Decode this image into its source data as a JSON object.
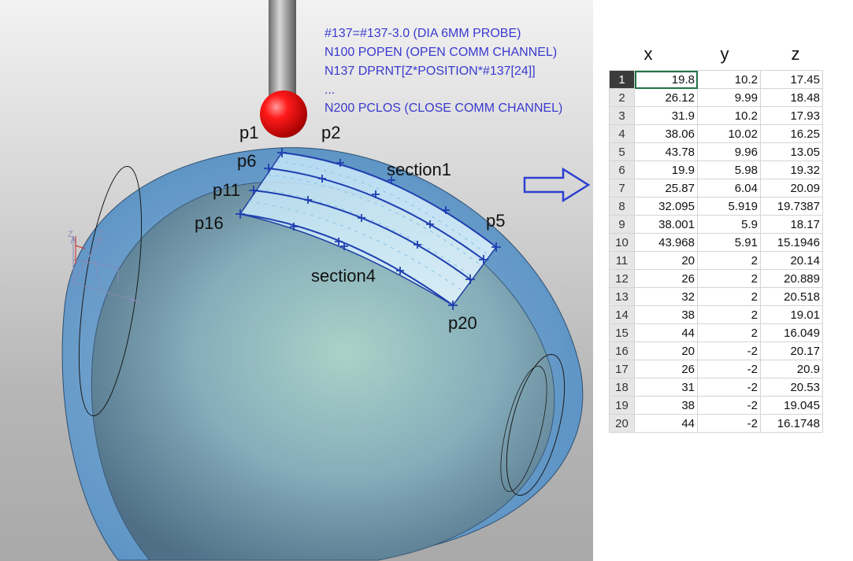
{
  "code": [
    "#137=#137-3.0 (DIA 6MM PROBE)",
    "N100 POPEN (OPEN COMM CHANNEL)",
    "N137 DPRNT[Z*POSITION*#137[24]]",
    "...",
    "N200 PCLOS (CLOSE COMM CHANNEL)"
  ],
  "labels": {
    "p1": "p1",
    "p2": "p2",
    "p5": "p5",
    "p6": "p6",
    "p11": "p11",
    "p16": "p16",
    "p20": "p20",
    "section1": "section1",
    "section4": "section4"
  },
  "axis": {
    "z": "Z",
    "y": "Y",
    "x": "X"
  },
  "table": {
    "headers": [
      "x",
      "y",
      "z"
    ],
    "rows": [
      {
        "n": "1",
        "x": "19.8",
        "y": "10.2",
        "z": "17.45"
      },
      {
        "n": "2",
        "x": "26.12",
        "y": "9.99",
        "z": "18.48"
      },
      {
        "n": "3",
        "x": "31.9",
        "y": "10.2",
        "z": "17.93"
      },
      {
        "n": "4",
        "x": "38.06",
        "y": "10.02",
        "z": "16.25"
      },
      {
        "n": "5",
        "x": "43.78",
        "y": "9.96",
        "z": "13.05"
      },
      {
        "n": "6",
        "x": "19.9",
        "y": "5.98",
        "z": "19.32"
      },
      {
        "n": "7",
        "x": "25.87",
        "y": "6.04",
        "z": "20.09"
      },
      {
        "n": "8",
        "x": "32.095",
        "y": "5.919",
        "z": "19.7387"
      },
      {
        "n": "9",
        "x": "38.001",
        "y": "5.9",
        "z": "18.17"
      },
      {
        "n": "10",
        "x": "43.968",
        "y": "5.91",
        "z": "15.1946"
      },
      {
        "n": "11",
        "x": "20",
        "y": "2",
        "z": "20.14"
      },
      {
        "n": "12",
        "x": "26",
        "y": "2",
        "z": "20.889"
      },
      {
        "n": "13",
        "x": "32",
        "y": "2",
        "z": "20.518"
      },
      {
        "n": "14",
        "x": "38",
        "y": "2",
        "z": "19.01"
      },
      {
        "n": "15",
        "x": "44",
        "y": "2",
        "z": "16.049"
      },
      {
        "n": "16",
        "x": "20",
        "y": "-2",
        "z": "20.17"
      },
      {
        "n": "17",
        "x": "26",
        "y": "-2",
        "z": "20.9"
      },
      {
        "n": "18",
        "x": "31",
        "y": "-2",
        "z": "20.53"
      },
      {
        "n": "19",
        "x": "38",
        "y": "-2",
        "z": "19.045"
      },
      {
        "n": "20",
        "x": "44",
        "y": "-2",
        "z": "16.1748"
      }
    ]
  },
  "colors": {
    "code": "#3a3ad0",
    "curve": "#1f3fb0",
    "arrow": "#2e3fd0",
    "probe_ball": "#e00000"
  }
}
